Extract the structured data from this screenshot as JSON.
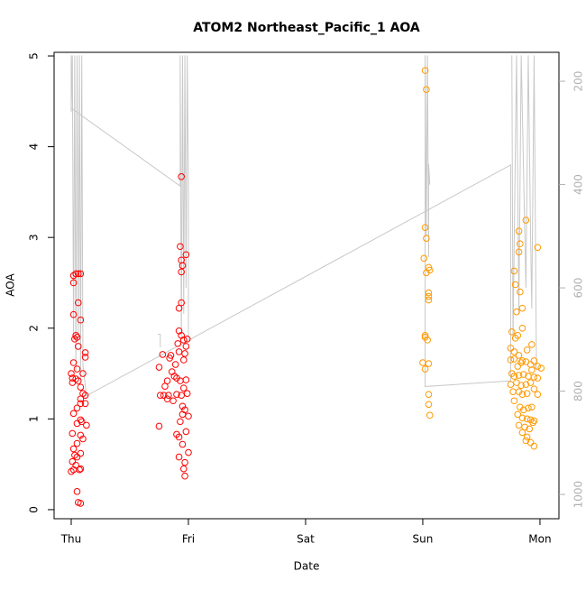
{
  "chart_data": {
    "type": "scatter",
    "title": "ATOM2 Northeast_Pacific_1 AOA",
    "x_label": "Date",
    "y_label": "AOA",
    "xlim": [
      -0.146,
      4.162
    ],
    "ylim": [
      -0.1,
      5.04
    ],
    "y2lim": [
      144,
      1047
    ],
    "xticks": [
      {
        "value": 0,
        "label": "Thu"
      },
      {
        "value": 1,
        "label": "Fri"
      },
      {
        "value": 2,
        "label": "Sat"
      },
      {
        "value": 3,
        "label": "Sun"
      },
      {
        "value": 4,
        "label": "Mon"
      }
    ],
    "yticks": [
      0,
      1,
      2,
      3,
      4,
      5
    ],
    "y2ticks": [
      200,
      400,
      600,
      800,
      1000
    ],
    "y2_reversed": true,
    "y2_color": "#b0b0b0",
    "series": [
      {
        "color": "#ff0000",
        "x": [
          0.04,
          0.06,
          0.08,
          0.02,
          0.02,
          0.06,
          0.02,
          0.08,
          0.04,
          0.05,
          0.03,
          0.06,
          0.12,
          0.12,
          0.02,
          0.05,
          0.1,
          0.0,
          0.01,
          0.01,
          0.04,
          0.06,
          0.08,
          0.1,
          0.12,
          0.08,
          0.08,
          0.12,
          0.05,
          0.02,
          0.08,
          0.09,
          0.13,
          0.05,
          0.01,
          0.08,
          0.1,
          0.05,
          0.02,
          0.08,
          0.03,
          0.05,
          0.01,
          0.04,
          0.02,
          0.0,
          0.07,
          0.08,
          0.05,
          0.06,
          0.08,
          0.94,
          0.93,
          0.98,
          0.94,
          0.95,
          0.94,
          0.94,
          0.92,
          0.92,
          0.94,
          0.96,
          0.99,
          0.91,
          0.98,
          0.78,
          0.85,
          0.84,
          0.92,
          0.97,
          0.96,
          0.75,
          0.89,
          0.86,
          0.88,
          0.9,
          0.93,
          0.98,
          0.82,
          0.8,
          0.76,
          0.79,
          0.83,
          0.9,
          0.94,
          0.99,
          0.96,
          0.87,
          0.82,
          0.95,
          0.97,
          0.95,
          1.0,
          0.93,
          0.75,
          0.98,
          0.9,
          0.92,
          0.95,
          1.0,
          0.92,
          0.97,
          0.96,
          0.97
        ],
        "values": [
          2.6,
          2.6,
          2.6,
          2.58,
          2.5,
          2.28,
          2.15,
          2.09,
          1.92,
          1.9,
          1.88,
          1.8,
          1.73,
          1.68,
          1.62,
          1.55,
          1.5,
          1.5,
          1.45,
          1.4,
          1.44,
          1.42,
          1.35,
          1.28,
          1.26,
          1.22,
          1.17,
          1.17,
          1.12,
          1.06,
          0.99,
          0.97,
          0.93,
          0.95,
          0.84,
          0.82,
          0.78,
          0.73,
          0.67,
          0.62,
          0.6,
          0.58,
          0.53,
          0.49,
          0.44,
          0.42,
          0.44,
          0.45,
          0.2,
          0.08,
          0.07,
          3.67,
          2.9,
          2.81,
          2.75,
          2.69,
          2.62,
          2.28,
          2.22,
          1.97,
          1.92,
          1.87,
          1.88,
          1.83,
          1.8,
          1.71,
          1.7,
          1.67,
          1.74,
          1.72,
          1.65,
          1.57,
          1.6,
          1.52,
          1.47,
          1.45,
          1.42,
          1.43,
          1.42,
          1.36,
          1.26,
          1.26,
          1.26,
          1.27,
          1.26,
          1.28,
          1.34,
          1.2,
          1.22,
          1.14,
          1.1,
          1.05,
          1.03,
          0.97,
          0.92,
          0.86,
          0.83,
          0.8,
          0.72,
          0.63,
          0.58,
          0.52,
          0.45,
          0.37
        ]
      },
      {
        "color": "#ff9900",
        "x": [
          3.02,
          3.03,
          3.02,
          3.03,
          3.01,
          3.05,
          3.03,
          3.06,
          3.05,
          3.05,
          3.05,
          3.02,
          3.02,
          3.04,
          3.0,
          3.02,
          3.05,
          3.05,
          3.05,
          3.06,
          3.88,
          3.82,
          3.83,
          3.82,
          3.98,
          3.78,
          3.79,
          3.83,
          3.8,
          3.85,
          3.85,
          3.76,
          3.79,
          3.81,
          3.75,
          3.78,
          3.82,
          3.93,
          3.89,
          3.85,
          3.75,
          3.78,
          3.81,
          3.84,
          3.88,
          3.92,
          3.95,
          3.98,
          4.01,
          3.93,
          3.76,
          3.78,
          3.82,
          3.86,
          3.9,
          3.95,
          3.98,
          3.8,
          3.84,
          3.88,
          3.92,
          3.75,
          3.77,
          3.82,
          3.85,
          3.89,
          3.95,
          3.98,
          3.78,
          3.83,
          3.86,
          3.9,
          3.93,
          3.81,
          3.85,
          3.89,
          3.92,
          3.95,
          3.94,
          3.82,
          3.87,
          3.91,
          3.85,
          3.89,
          3.88,
          3.92,
          3.95
        ],
        "values": [
          4.84,
          4.63,
          3.11,
          2.99,
          2.77,
          2.67,
          2.61,
          2.64,
          2.39,
          2.35,
          2.31,
          1.92,
          1.9,
          1.87,
          1.62,
          1.55,
          1.61,
          1.27,
          1.16,
          1.04,
          3.19,
          3.07,
          2.93,
          2.84,
          2.89,
          2.63,
          2.48,
          2.4,
          2.18,
          2.22,
          2.0,
          1.96,
          1.89,
          1.92,
          1.78,
          1.74,
          1.7,
          1.82,
          1.76,
          1.64,
          1.65,
          1.66,
          1.58,
          1.62,
          1.63,
          1.6,
          1.64,
          1.58,
          1.56,
          1.54,
          1.5,
          1.47,
          1.48,
          1.49,
          1.47,
          1.46,
          1.45,
          1.4,
          1.37,
          1.38,
          1.4,
          1.38,
          1.3,
          1.3,
          1.27,
          1.28,
          1.33,
          1.27,
          1.2,
          1.13,
          1.1,
          1.12,
          1.13,
          1.05,
          1.01,
          1.0,
          0.99,
          0.98,
          0.96,
          0.93,
          0.91,
          0.89,
          0.85,
          0.8,
          0.76,
          0.74,
          0.7
        ]
      },
      {
        "type": "line",
        "axis": "y2",
        "color": "#c8c8c8",
        "x": [
          0.0,
          0.93,
          0.93,
          0.94,
          0.95,
          0.96,
          0.97,
          0.98,
          0.99,
          1.0,
          1.0,
          null,
          0.74,
          0.76,
          0.76,
          null,
          0.0,
          0.0,
          0.01,
          0.02,
          0.03,
          0.04,
          0.05,
          0.06,
          0.07,
          0.08,
          0.09,
          0.1,
          0.13,
          3.75,
          3.75,
          3.02,
          3.02,
          3.03,
          3.04,
          3.05,
          3.05,
          3.06,
          null,
          3.76,
          3.77,
          3.8,
          3.82,
          3.84,
          3.88,
          3.9,
          3.92,
          3.93,
          3.95,
          3.97
        ],
        "values": [
          252,
          403,
          150,
          700,
          150,
          650,
          150,
          600,
          150,
          403,
          700,
          null,
          690,
          690,
          715,
          null,
          150,
          260,
          150,
          700,
          150,
          760,
          150,
          690,
          150,
          780,
          150,
          750,
          809,
          362,
          780,
          791,
          150,
          500,
          150,
          540,
          360,
          400,
          null,
          150,
          700,
          150,
          650,
          150,
          600,
          150,
          500,
          640,
          150,
          760
        ]
      }
    ]
  }
}
